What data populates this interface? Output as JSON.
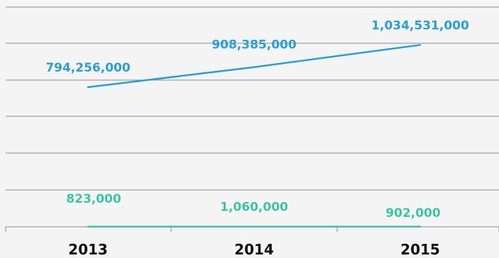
{
  "chart_data": {
    "type": "line",
    "categories": [
      "2013",
      "2014",
      "2015"
    ],
    "series": [
      {
        "values": [
          794256000,
          908385000,
          1034531000
        ],
        "labels": [
          "794,256,000",
          "908,385,000",
          "1,034,531,000"
        ],
        "color": "#2a9fd6"
      },
      {
        "values": [
          823000,
          1060000,
          902000
        ],
        "labels": [
          "823,000",
          "1,060,000",
          "902,000"
        ],
        "color": "#3cc4a8"
      }
    ],
    "title": "",
    "xlabel": "",
    "ylabel": "",
    "ylim": [
      0,
      1250000000
    ],
    "grid": true,
    "legend": "none"
  }
}
